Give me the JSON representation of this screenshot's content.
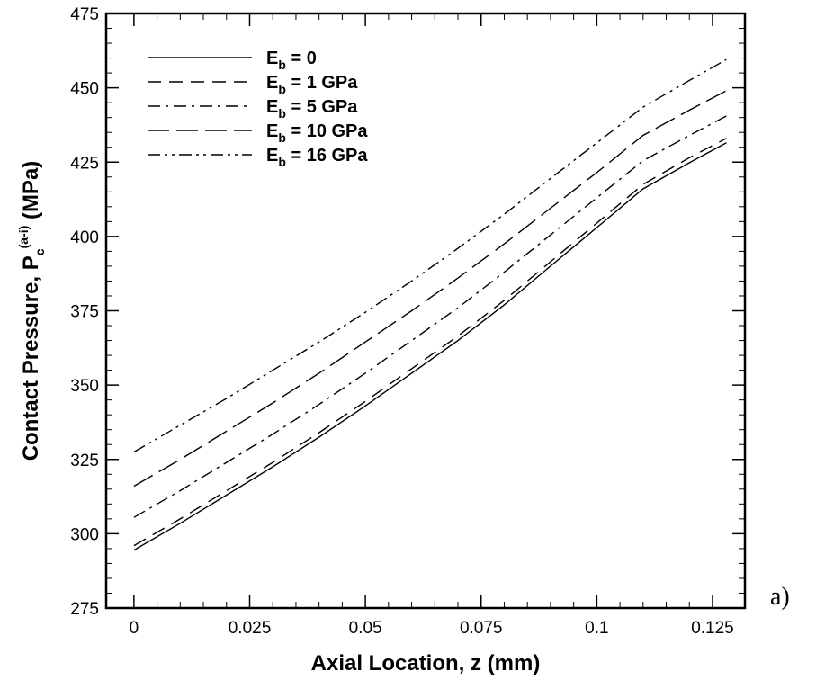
{
  "chart_data": {
    "type": "line",
    "title": "",
    "xlabel": "Axial Location, z (mm)",
    "ylabel": {
      "main": "Contact Pressure, P",
      "sub": "c",
      "sup": "(a-i)",
      "unit": " (MPa)"
    },
    "xlim": [
      -0.006,
      0.132
    ],
    "ylim": [
      275,
      475
    ],
    "xticks": [
      0,
      0.025,
      0.05,
      0.075,
      0.1,
      0.125
    ],
    "xtick_labels": [
      "0",
      "0.025",
      "0.05",
      "0.075",
      "0.1",
      "0.125"
    ],
    "yticks": [
      275,
      300,
      325,
      350,
      375,
      400,
      425,
      450,
      475
    ],
    "ytick_labels": [
      "275",
      "300",
      "325",
      "350",
      "375",
      "400",
      "425",
      "450",
      "475"
    ],
    "grid": false,
    "legend_position": "top-left",
    "x": [
      0,
      0.01,
      0.02,
      0.03,
      0.04,
      0.05,
      0.06,
      0.07,
      0.08,
      0.09,
      0.1,
      0.11,
      0.12,
      0.128
    ],
    "series": [
      {
        "name_main": "E",
        "name_sub": "b",
        "name_rest": " = 0",
        "dash": "none",
        "values": [
          294.5,
          303.5,
          313,
          322.5,
          332.5,
          343,
          354,
          365,
          377,
          390,
          403,
          416,
          424.8,
          431.5
        ]
      },
      {
        "name_main": "E",
        "name_sub": "b",
        "name_rest": " = 1 GPa",
        "dash": "15 9",
        "values": [
          296,
          305,
          314.5,
          324,
          334,
          344.5,
          355.5,
          366.5,
          378.5,
          391.5,
          404.5,
          417.5,
          426.5,
          433
        ]
      },
      {
        "name_main": "E",
        "name_sub": "b",
        "name_rest": " = 5 GPa",
        "dash": "14 6 3 6",
        "values": [
          305.5,
          314.5,
          324,
          333.5,
          343.5,
          354,
          365,
          376,
          388,
          400.5,
          413,
          425.5,
          434,
          440.5
        ]
      },
      {
        "name_main": "E",
        "name_sub": "b",
        "name_rest": " = 10 GPa",
        "dash": "24 8",
        "values": [
          316,
          325,
          334.5,
          344,
          354,
          364.5,
          375,
          386,
          397.5,
          409.5,
          421.5,
          434,
          442.5,
          449
        ]
      },
      {
        "name_main": "E",
        "name_sub": "b",
        "name_rest": " = 16 GPa",
        "dash": "14 5 3 5 3 5",
        "values": [
          327.5,
          336.5,
          345.5,
          355,
          364.5,
          374.5,
          385,
          396,
          407.5,
          419.5,
          431.5,
          443.5,
          452.5,
          459.5
        ]
      }
    ]
  },
  "panel_label": "a)"
}
